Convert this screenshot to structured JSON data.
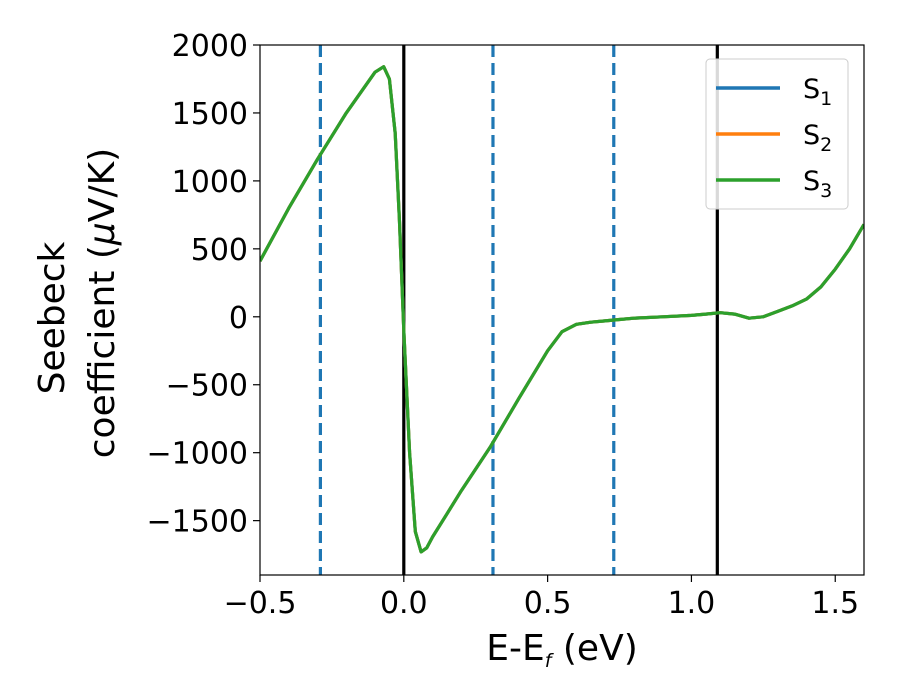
{
  "chart_data": {
    "type": "line",
    "xlabel": "E-E",
    "xlabel_sub": "f",
    "xlabel_unit": " (eV)",
    "ylabel_line1": "Seebeck",
    "ylabel_line2_pre": "coefficient  (",
    "ylabel_mu": "μ",
    "ylabel_line2_post": "V/K)",
    "xlim": [
      -0.5,
      1.6
    ],
    "ylim": [
      -1900,
      2000
    ],
    "xticks": [
      -0.5,
      0.0,
      0.5,
      1.0,
      1.5
    ],
    "xtick_labels": [
      "−0.5",
      "0.0",
      "0.5",
      "1.0",
      "1.5"
    ],
    "yticks": [
      2000,
      1500,
      1000,
      500,
      0,
      -500,
      -1000,
      -1500
    ],
    "ytick_labels": [
      "2000",
      "1500",
      "1000",
      "500",
      "0",
      "−500",
      "−1000",
      "−1500"
    ],
    "grid": false,
    "legend_position": "top-right",
    "series": [
      {
        "name": "S",
        "sub": "1",
        "color": "#1f77b4",
        "x": [
          -0.5,
          -0.4,
          -0.3,
          -0.2,
          -0.1,
          -0.07,
          -0.05,
          -0.03,
          -0.015,
          0.0,
          0.02,
          0.04,
          0.06,
          0.08,
          0.1,
          0.15,
          0.2,
          0.3,
          0.4,
          0.5,
          0.55,
          0.6,
          0.65,
          0.7,
          0.75,
          0.8,
          0.9,
          1.0,
          1.05,
          1.1,
          1.15,
          1.2,
          1.25,
          1.3,
          1.35,
          1.4,
          1.45,
          1.5,
          1.55,
          1.6
        ],
        "y": [
          410,
          800,
          1160,
          1500,
          1800,
          1840,
          1750,
          1350,
          700,
          -100,
          -1000,
          -1580,
          -1730,
          -1700,
          -1620,
          -1450,
          -1280,
          -960,
          -600,
          -250,
          -110,
          -55,
          -40,
          -30,
          -20,
          -10,
          0,
          10,
          20,
          30,
          20,
          -10,
          0,
          40,
          80,
          130,
          220,
          350,
          500,
          680
        ]
      },
      {
        "name": "S",
        "sub": "2",
        "color": "#ff7f0e",
        "x": [
          -0.5,
          -0.4,
          -0.3,
          -0.2,
          -0.1,
          -0.07,
          -0.05,
          -0.03,
          -0.015,
          0.0,
          0.02,
          0.04,
          0.06,
          0.08,
          0.1,
          0.15,
          0.2,
          0.3,
          0.4,
          0.5,
          0.55,
          0.6,
          0.65,
          0.7,
          0.75,
          0.8,
          0.9,
          1.0,
          1.05,
          1.1,
          1.15,
          1.2,
          1.25,
          1.3,
          1.35,
          1.4,
          1.45,
          1.5,
          1.55,
          1.6
        ],
        "y": [
          410,
          800,
          1160,
          1500,
          1800,
          1840,
          1750,
          1350,
          700,
          -100,
          -1000,
          -1580,
          -1730,
          -1700,
          -1620,
          -1450,
          -1280,
          -960,
          -600,
          -250,
          -110,
          -55,
          -40,
          -30,
          -20,
          -10,
          0,
          10,
          20,
          30,
          20,
          -10,
          0,
          40,
          80,
          130,
          220,
          350,
          500,
          680
        ]
      },
      {
        "name": "S",
        "sub": "3",
        "color": "#2ca02c",
        "x": [
          -0.5,
          -0.4,
          -0.3,
          -0.2,
          -0.1,
          -0.07,
          -0.05,
          -0.03,
          -0.015,
          0.0,
          0.02,
          0.04,
          0.06,
          0.08,
          0.1,
          0.15,
          0.2,
          0.3,
          0.4,
          0.5,
          0.55,
          0.6,
          0.65,
          0.7,
          0.75,
          0.8,
          0.9,
          1.0,
          1.05,
          1.1,
          1.15,
          1.2,
          1.25,
          1.3,
          1.35,
          1.4,
          1.45,
          1.5,
          1.55,
          1.6
        ],
        "y": [
          410,
          800,
          1160,
          1500,
          1800,
          1840,
          1750,
          1350,
          700,
          -100,
          -1000,
          -1580,
          -1730,
          -1700,
          -1620,
          -1450,
          -1280,
          -960,
          -600,
          -250,
          -110,
          -55,
          -40,
          -30,
          -20,
          -10,
          0,
          10,
          20,
          30,
          20,
          -10,
          0,
          40,
          80,
          130,
          220,
          350,
          500,
          680
        ]
      }
    ],
    "vlines": [
      {
        "x": -0.29,
        "style": "dashed",
        "color": "#1f77b4"
      },
      {
        "x": 0.0,
        "style": "solid",
        "color": "#000000"
      },
      {
        "x": 0.31,
        "style": "dashed",
        "color": "#1f77b4"
      },
      {
        "x": 0.73,
        "style": "dashed",
        "color": "#1f77b4"
      },
      {
        "x": 1.09,
        "style": "solid",
        "color": "#000000"
      }
    ]
  }
}
